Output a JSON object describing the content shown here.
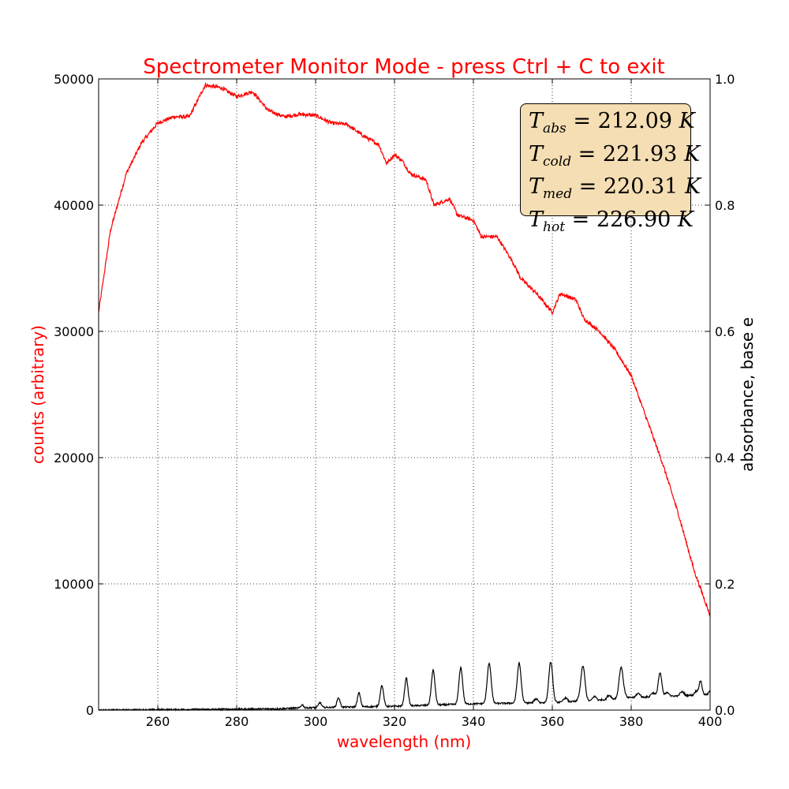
{
  "chart_data": {
    "type": "line",
    "title": "Spectrometer Monitor Mode - press Ctrl + C to exit",
    "xlabel": "wavelength (nm)",
    "ylabel_left": "counts (arbitrary)",
    "ylabel_right": "absorbance, base e",
    "xlim": [
      245,
      400
    ],
    "ylim_left": [
      0,
      50000
    ],
    "ylim_right": [
      0.0,
      1.0
    ],
    "x_ticks": [
      "260",
      "280",
      "300",
      "320",
      "340",
      "360",
      "380",
      "400"
    ],
    "y_left_ticks": [
      "0",
      "10000",
      "20000",
      "30000",
      "40000",
      "50000"
    ],
    "y_right_ticks": [
      "0.0",
      "0.2",
      "0.4",
      "0.6",
      "0.8",
      "1.0"
    ],
    "grid": true,
    "colors": {
      "counts": "#ff0000",
      "absorbance": "#000000",
      "title": "#ff0000",
      "legend_bg": "#f5deb3"
    },
    "series": [
      {
        "axis": "left",
        "x": [
          245,
          248,
          252,
          256,
          260,
          264,
          268,
          272,
          276,
          280,
          284,
          288,
          292,
          296,
          300,
          304,
          308,
          312,
          316,
          318,
          320,
          322,
          324,
          328,
          330,
          334,
          336,
          340,
          342,
          346,
          350,
          352,
          356,
          360,
          362,
          366,
          368,
          372,
          376,
          378,
          380,
          384,
          388,
          392,
          396,
          400
        ],
        "values": [
          31500,
          38000,
          42500,
          45000,
          46500,
          47000,
          47000,
          49500,
          49300,
          48600,
          49000,
          47500,
          47000,
          47200,
          47100,
          46500,
          46400,
          45500,
          44800,
          43300,
          44000,
          43500,
          42500,
          42000,
          40000,
          40500,
          39200,
          38800,
          37500,
          37500,
          35500,
          34200,
          33000,
          31500,
          33000,
          32500,
          31000,
          30000,
          28500,
          27500,
          26500,
          23000,
          19500,
          15500,
          11000,
          7500
        ]
      },
      {
        "axis": "right",
        "baseline": [
          [
            245,
            0.0
          ],
          [
            290,
            0.002
          ],
          [
            300,
            0.004
          ],
          [
            320,
            0.006
          ],
          [
            340,
            0.01
          ],
          [
            360,
            0.012
          ],
          [
            370,
            0.015
          ],
          [
            380,
            0.02
          ],
          [
            390,
            0.022
          ],
          [
            400,
            0.025
          ]
        ],
        "peaks": [
          [
            296.6,
            0.005,
            1.0
          ],
          [
            301.1,
            0.008,
            1.0
          ],
          [
            305.8,
            0.015,
            1.1
          ],
          [
            311.0,
            0.022,
            1.1
          ],
          [
            316.8,
            0.033,
            1.2
          ],
          [
            323.0,
            0.044,
            1.2
          ],
          [
            329.8,
            0.055,
            1.3
          ],
          [
            336.8,
            0.058,
            1.3
          ],
          [
            344.0,
            0.064,
            1.4
          ],
          [
            351.6,
            0.063,
            1.4
          ],
          [
            359.6,
            0.058,
            1.4
          ],
          [
            367.8,
            0.054,
            1.4
          ],
          [
            377.4,
            0.047,
            1.4
          ],
          [
            387.3,
            0.037,
            1.3
          ],
          [
            397.6,
            0.022,
            1.0
          ]
        ]
      }
    ]
  },
  "legend": {
    "rows": [
      {
        "sym": "T",
        "sub": "abs",
        "value": "212.09",
        "unit": "K"
      },
      {
        "sym": "T",
        "sub": "cold",
        "value": "221.93",
        "unit": "K"
      },
      {
        "sym": "T",
        "sub": "med",
        "value": "220.31",
        "unit": "K"
      },
      {
        "sym": "T",
        "sub": "hot",
        "value": "226.90",
        "unit": "K"
      }
    ]
  }
}
